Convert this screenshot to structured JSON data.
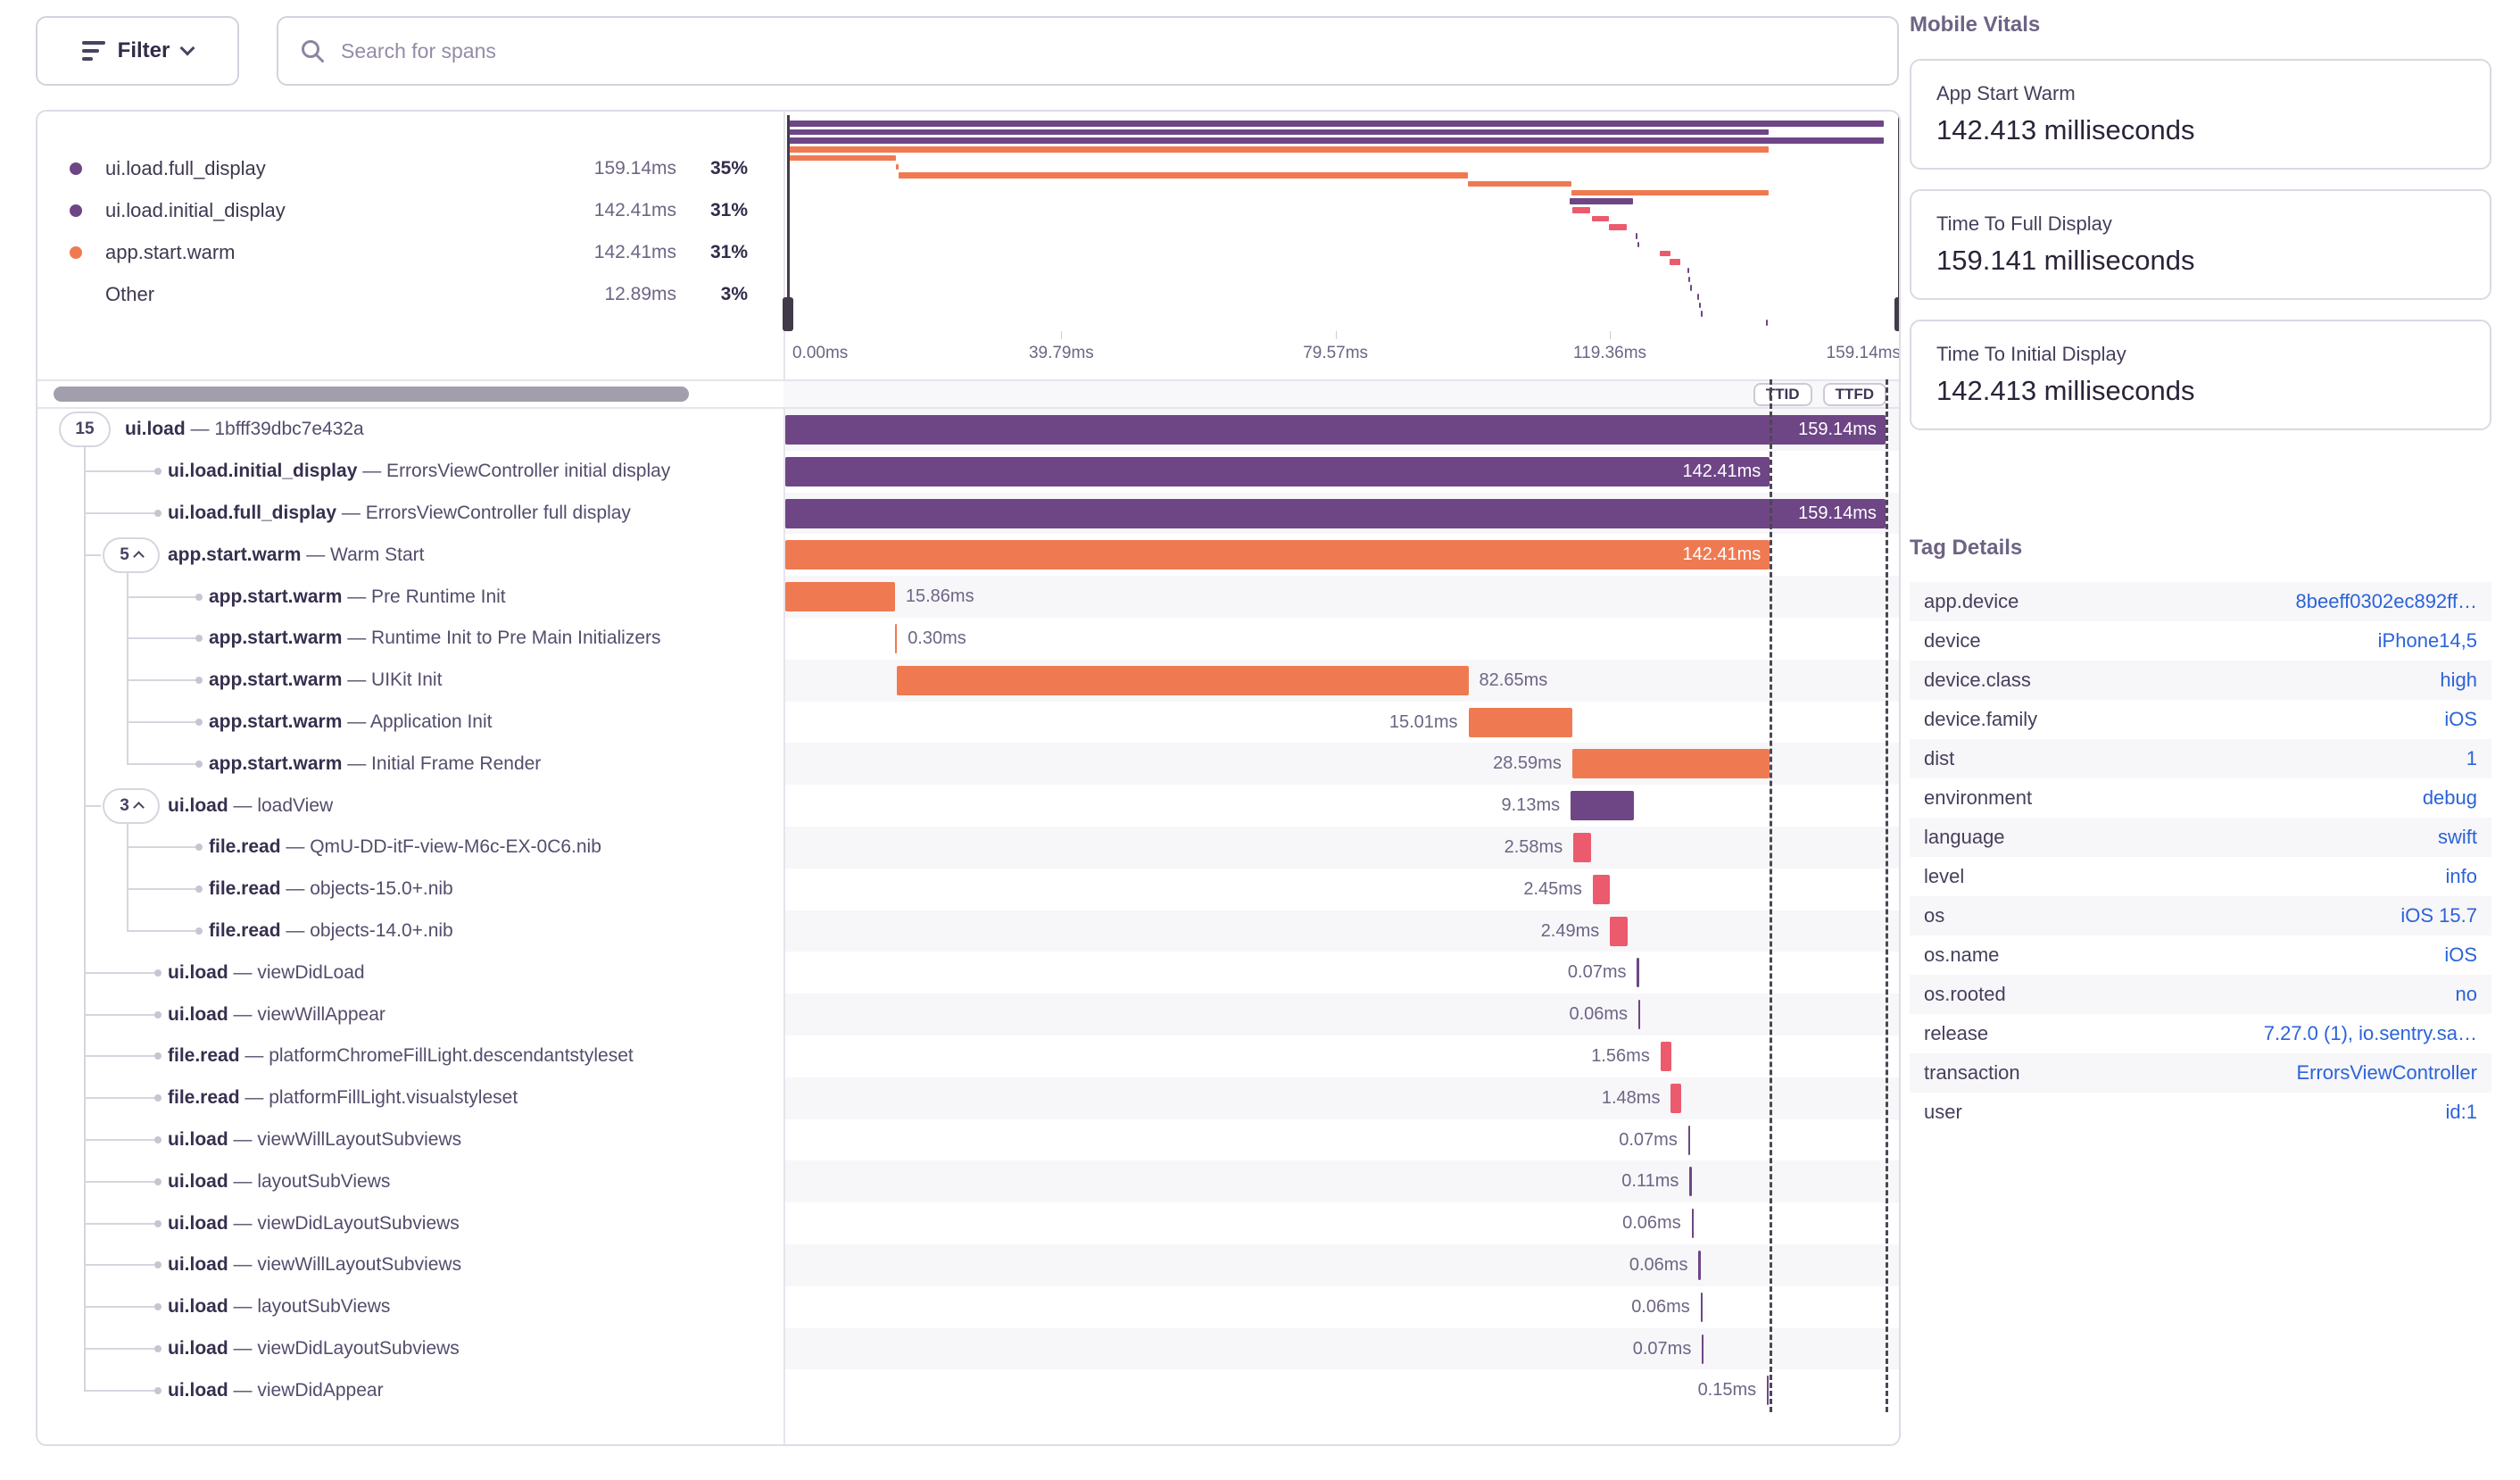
{
  "toolbar": {
    "filter_label": "Filter",
    "search_placeholder": "Search for spans"
  },
  "colors": {
    "purple": "#6e4686",
    "orange": "#ef7a52",
    "pink": "#ec5a6e",
    "accent_blue": "#2b63d9",
    "marker_dash": "#4c4653"
  },
  "legend": {
    "items": [
      {
        "name": "ui.load.full_display",
        "duration": "159.14ms",
        "pct": "35%",
        "color": "#6e4686"
      },
      {
        "name": "ui.load.initial_display",
        "duration": "142.41ms",
        "pct": "31%",
        "color": "#6e4686"
      },
      {
        "name": "app.start.warm",
        "duration": "142.41ms",
        "pct": "31%",
        "color": "#ef7a52"
      },
      {
        "name": "Other",
        "duration": "12.89ms",
        "pct": "3%",
        "color": null
      }
    ]
  },
  "minimap": {
    "axis_ticks": [
      "0.00ms",
      "39.79ms",
      "79.57ms",
      "119.36ms",
      "159.14ms"
    ],
    "axis_tick_pct": [
      0,
      24.63,
      49.25,
      73.88,
      98.5
    ],
    "ttid_label": "TTID",
    "ttfd_label": "TTFD"
  },
  "timeline": {
    "view_max_ms": 161.6,
    "ttid_ms": 142.41,
    "ttfd_ms": 159.14,
    "dash": "—"
  },
  "spans": [
    {
      "op": "ui.load",
      "desc": "1bfff39dbc7e432a",
      "badge": "15",
      "chev": false,
      "depth": 0,
      "color": "purple",
      "start": 0,
      "dur": 159.14,
      "label": "159.14ms",
      "pos": "inside"
    },
    {
      "op": "ui.load.initial_display",
      "desc": "ErrorsViewController initial display",
      "badge": null,
      "chev": false,
      "depth": 1,
      "color": "purple",
      "start": 0,
      "dur": 142.41,
      "label": "142.41ms",
      "pos": "inside"
    },
    {
      "op": "ui.load.full_display",
      "desc": "ErrorsViewController full display",
      "badge": null,
      "chev": false,
      "depth": 1,
      "color": "purple",
      "start": 0,
      "dur": 159.14,
      "label": "159.14ms",
      "pos": "inside"
    },
    {
      "op": "app.start.warm",
      "desc": "Warm Start",
      "badge": "5",
      "chev": true,
      "depth": 1,
      "color": "orange",
      "start": 0,
      "dur": 142.41,
      "label": "142.41ms",
      "pos": "inside"
    },
    {
      "op": "app.start.warm",
      "desc": "Pre Runtime Init",
      "badge": null,
      "chev": false,
      "depth": 2,
      "color": "orange",
      "start": 0,
      "dur": 15.86,
      "label": "15.86ms",
      "pos": "after"
    },
    {
      "op": "app.start.warm",
      "desc": "Runtime Init to Pre Main Initializers",
      "badge": null,
      "chev": false,
      "depth": 2,
      "color": "orange",
      "start": 15.86,
      "dur": 0.3,
      "label": "0.30ms",
      "pos": "after"
    },
    {
      "op": "app.start.warm",
      "desc": "UIKit Init",
      "badge": null,
      "chev": false,
      "depth": 2,
      "color": "orange",
      "start": 16.16,
      "dur": 82.65,
      "label": "82.65ms",
      "pos": "after"
    },
    {
      "op": "app.start.warm",
      "desc": "Application Init",
      "badge": null,
      "chev": false,
      "depth": 2,
      "color": "orange",
      "start": 98.81,
      "dur": 15.01,
      "label": "15.01ms",
      "pos": "before"
    },
    {
      "op": "app.start.warm",
      "desc": "Initial Frame Render",
      "badge": null,
      "chev": false,
      "depth": 2,
      "color": "orange",
      "start": 113.82,
      "dur": 28.59,
      "label": "28.59ms",
      "pos": "before"
    },
    {
      "op": "ui.load",
      "desc": "loadView",
      "badge": "3",
      "chev": true,
      "depth": 1,
      "color": "purple",
      "start": 113.6,
      "dur": 9.13,
      "label": "9.13ms",
      "pos": "before"
    },
    {
      "op": "file.read",
      "desc": "QmU-DD-itF-view-M6c-EX-0C6.nib",
      "badge": null,
      "chev": false,
      "depth": 2,
      "color": "pink",
      "start": 114.0,
      "dur": 2.58,
      "label": "2.58ms",
      "pos": "before"
    },
    {
      "op": "file.read",
      "desc": "objects-15.0+.nib",
      "badge": null,
      "chev": false,
      "depth": 2,
      "color": "pink",
      "start": 116.8,
      "dur": 2.45,
      "label": "2.45ms",
      "pos": "before"
    },
    {
      "op": "file.read",
      "desc": "objects-14.0+.nib",
      "badge": null,
      "chev": false,
      "depth": 2,
      "color": "pink",
      "start": 119.3,
      "dur": 2.49,
      "label": "2.49ms",
      "pos": "before"
    },
    {
      "op": "ui.load",
      "desc": "viewDidLoad",
      "badge": null,
      "chev": false,
      "depth": 1,
      "color": "purple",
      "start": 123.2,
      "dur": 0.07,
      "label": "0.07ms",
      "pos": "before"
    },
    {
      "op": "ui.load",
      "desc": "viewWillAppear",
      "badge": null,
      "chev": false,
      "depth": 1,
      "color": "purple",
      "start": 123.4,
      "dur": 0.06,
      "label": "0.06ms",
      "pos": "before"
    },
    {
      "op": "file.read",
      "desc": "platformChromeFillLight.descendantstyleset",
      "badge": null,
      "chev": false,
      "depth": 1,
      "color": "pink",
      "start": 126.6,
      "dur": 1.56,
      "label": "1.56ms",
      "pos": "before"
    },
    {
      "op": "file.read",
      "desc": "platformFillLight.visualstyleset",
      "badge": null,
      "chev": false,
      "depth": 1,
      "color": "pink",
      "start": 128.1,
      "dur": 1.48,
      "label": "1.48ms",
      "pos": "before"
    },
    {
      "op": "ui.load",
      "desc": "viewWillLayoutSubviews",
      "badge": null,
      "chev": false,
      "depth": 1,
      "color": "purple",
      "start": 130.6,
      "dur": 0.07,
      "label": "0.07ms",
      "pos": "before"
    },
    {
      "op": "ui.load",
      "desc": "layoutSubViews",
      "badge": null,
      "chev": false,
      "depth": 1,
      "color": "purple",
      "start": 130.8,
      "dur": 0.11,
      "label": "0.11ms",
      "pos": "before"
    },
    {
      "op": "ui.load",
      "desc": "viewDidLayoutSubviews",
      "badge": null,
      "chev": false,
      "depth": 1,
      "color": "purple",
      "start": 131.1,
      "dur": 0.06,
      "label": "0.06ms",
      "pos": "before"
    },
    {
      "op": "ui.load",
      "desc": "viewWillLayoutSubviews",
      "badge": null,
      "chev": false,
      "depth": 1,
      "color": "purple",
      "start": 132.1,
      "dur": 0.06,
      "label": "0.06ms",
      "pos": "before"
    },
    {
      "op": "ui.load",
      "desc": "layoutSubViews",
      "badge": null,
      "chev": false,
      "depth": 1,
      "color": "purple",
      "start": 132.4,
      "dur": 0.06,
      "label": "0.06ms",
      "pos": "before"
    },
    {
      "op": "ui.load",
      "desc": "viewDidLayoutSubviews",
      "badge": null,
      "chev": false,
      "depth": 1,
      "color": "purple",
      "start": 132.6,
      "dur": 0.07,
      "label": "0.07ms",
      "pos": "before"
    },
    {
      "op": "ui.load",
      "desc": "viewDidAppear",
      "badge": null,
      "chev": false,
      "depth": 1,
      "color": "purple",
      "start": 142.0,
      "dur": 0.15,
      "label": "0.15ms",
      "pos": "before"
    }
  ],
  "vitals": {
    "title": "Mobile Vitals",
    "cards": [
      {
        "label": "App Start Warm",
        "value": "142.413 milliseconds"
      },
      {
        "label": "Time To Full Display",
        "value": "159.141 milliseconds"
      },
      {
        "label": "Time To Initial Display",
        "value": "142.413 milliseconds"
      }
    ]
  },
  "tags": {
    "title": "Tag Details",
    "rows": [
      {
        "key": "app.device",
        "value": "8beeff0302ec892ff…"
      },
      {
        "key": "device",
        "value": "iPhone14,5"
      },
      {
        "key": "device.class",
        "value": "high"
      },
      {
        "key": "device.family",
        "value": "iOS"
      },
      {
        "key": "dist",
        "value": "1"
      },
      {
        "key": "environment",
        "value": "debug"
      },
      {
        "key": "language",
        "value": "swift"
      },
      {
        "key": "level",
        "value": "info"
      },
      {
        "key": "os",
        "value": "iOS 15.7"
      },
      {
        "key": "os.name",
        "value": "iOS"
      },
      {
        "key": "os.rooted",
        "value": "no"
      },
      {
        "key": "release",
        "value": "7.27.0 (1), io.sentry.sa…"
      },
      {
        "key": "transaction",
        "value": "ErrorsViewController"
      },
      {
        "key": "user",
        "value": "id:1"
      }
    ]
  }
}
